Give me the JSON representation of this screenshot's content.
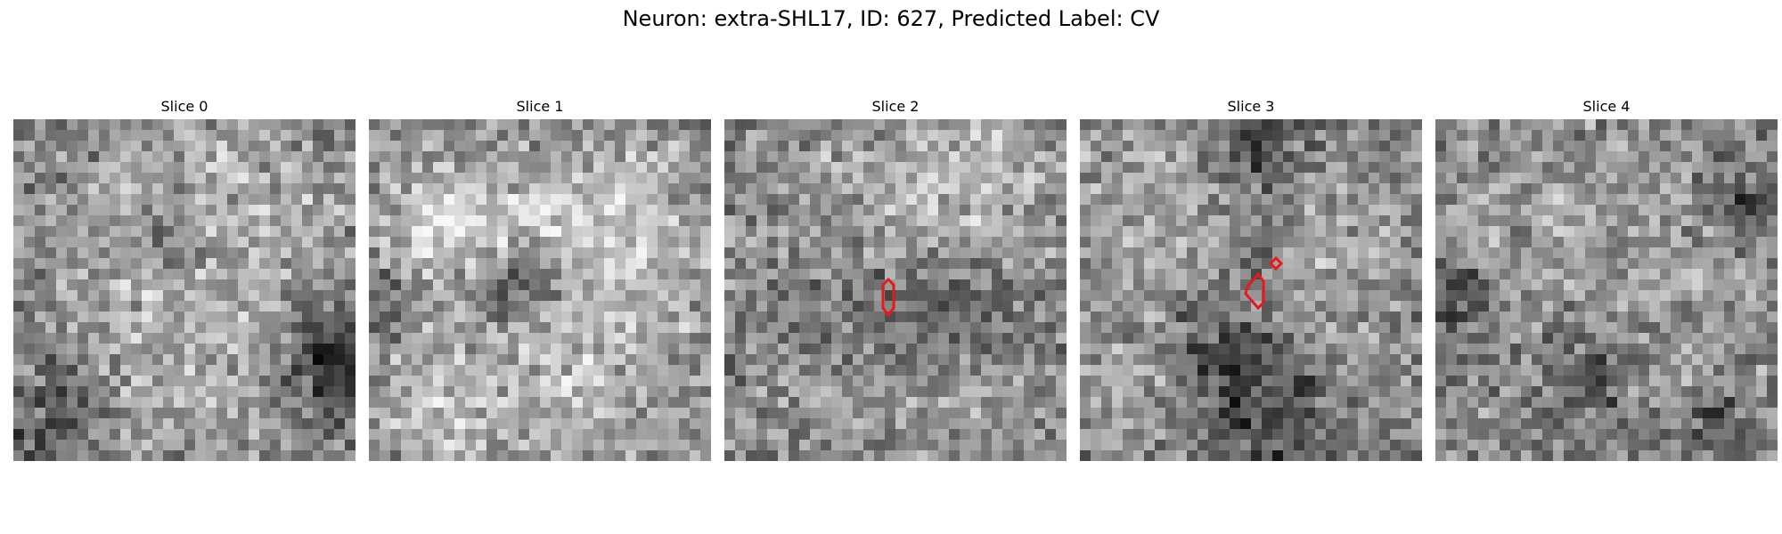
{
  "figure": {
    "title": "Neuron: extra-SHL17, ID: 627, Predicted Label: CV"
  },
  "panels": [
    {
      "title": "Slice 0",
      "seed": 11,
      "blobs": "s0"
    },
    {
      "title": "Slice 1",
      "seed": 23,
      "blobs": "s1"
    },
    {
      "title": "Slice 2",
      "seed": 37,
      "blobs": "s2"
    },
    {
      "title": "Slice 3",
      "seed": 53,
      "blobs": "s3"
    },
    {
      "title": "Slice 4",
      "seed": 71,
      "blobs": "s4"
    }
  ],
  "annotation_color": "#e41a1c",
  "colormap": "grayscale"
}
